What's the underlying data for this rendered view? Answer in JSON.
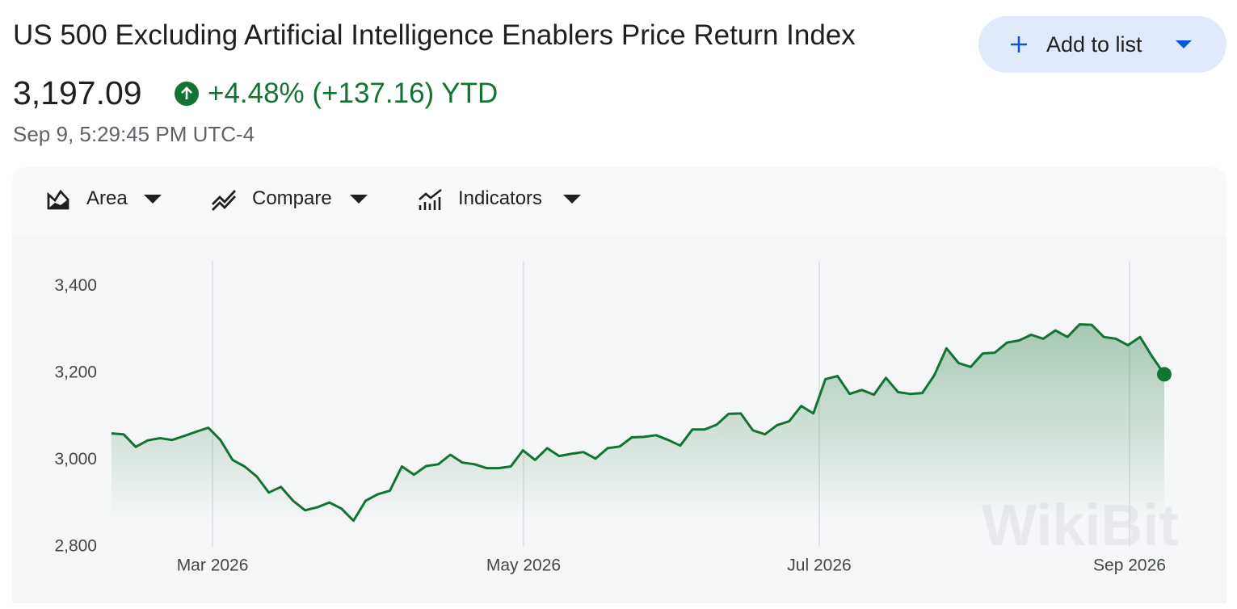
{
  "header": {
    "title": "US 500 Excluding Artificial Intelligence Enablers Price Return Index",
    "price": "3,197.09",
    "change": "+4.48% (+137.16) YTD",
    "timestamp": "Sep 9, 5:29:45 PM UTC-4",
    "button": "Add to list"
  },
  "toolbar": [
    "Area",
    "Compare",
    "Indicators"
  ],
  "watermark": "WikiBit",
  "chart_data": {
    "type": "line",
    "area": true,
    "end_marker": true,
    "color": "#137333",
    "grid": "x",
    "values": [
      3061,
      3059,
      3030,
      3045,
      3050,
      3046,
      3055,
      3065,
      3074,
      3046,
      3000,
      2985,
      2962,
      2925,
      2938,
      2906,
      2884,
      2891,
      2902,
      2888,
      2860,
      2906,
      2921,
      2929,
      2985,
      2966,
      2986,
      2990,
      3012,
      2994,
      2990,
      2981,
      2981,
      2985,
      3022,
      3000,
      3027,
      3009,
      3014,
      3018,
      3003,
      3027,
      3031,
      3052,
      3053,
      3057,
      3046,
      3033,
      3070,
      3070,
      3081,
      3106,
      3107,
      3068,
      3059,
      3080,
      3089,
      3124,
      3107,
      3186,
      3193,
      3152,
      3161,
      3150,
      3189,
      3156,
      3152,
      3154,
      3195,
      3257,
      3223,
      3214,
      3245,
      3247,
      3270,
      3275,
      3288,
      3279,
      3298,
      3283,
      3312,
      3311,
      3283,
      3279,
      3264,
      3283,
      3238,
      3197.09
    ],
    "xlim": [
      0,
      87
    ],
    "xticks": [
      {
        "value": 8.35,
        "label": "Mar 2026"
      },
      {
        "value": 34.05,
        "label": "May 2026"
      },
      {
        "value": 58.49,
        "label": "Jul 2026"
      },
      {
        "value": 84.13,
        "label": "Sep 2026"
      }
    ],
    "ylim": [
      2800,
      3460
    ],
    "yticks": [
      {
        "value": 2800,
        "label": "2,800"
      },
      {
        "value": 3000,
        "label": "3,000"
      },
      {
        "value": 3200,
        "label": "3,200"
      },
      {
        "value": 3400,
        "label": "3,400"
      }
    ]
  }
}
